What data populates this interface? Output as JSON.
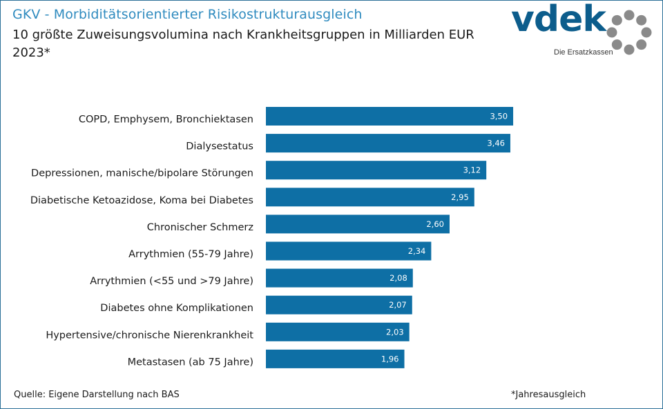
{
  "header": {
    "title": "GKV - Morbiditätsorientierter Risikostrukturausgleich",
    "subtitle_line1": "10 größte Zuweisungsvolumina nach Krankheitsgruppen in Milliarden EUR",
    "subtitle_line2": "2023*"
  },
  "logo": {
    "word": "vdek",
    "tagline": "Die Ersatzkassen",
    "colors": {
      "word": "#0c5d8c",
      "ring": "#8a8a8a"
    }
  },
  "footer": {
    "source": "Quelle: Eigene Darstellung nach BAS",
    "note": "*Jahresausgleich"
  },
  "chart_data": {
    "type": "bar",
    "orientation": "horizontal",
    "categories": [
      "COPD, Emphysem, Bronchiektasen",
      "Dialysestatus",
      "Depressionen, manische/bipolare Störungen",
      "Diabetische Ketoazidose, Koma bei Diabetes",
      "Chronischer Schmerz",
      "Arrythmien (55-79 Jahre)",
      "Arrythmien (<55 und >79 Jahre)",
      "Diabetes ohne Komplikationen",
      "Hypertensive/chronische Nierenkrankheit",
      "Metastasen (ab 75 Jahre)"
    ],
    "values": [
      3.5,
      3.46,
      3.12,
      2.95,
      2.6,
      2.34,
      2.08,
      2.07,
      2.03,
      1.96
    ],
    "data_labels": [
      "3,50",
      "3,46",
      "3,12",
      "2,95",
      "2,60",
      "2,34",
      "2,08",
      "2,07",
      "2,03",
      "1,96"
    ],
    "bar_color": "#0e6fa5",
    "xlim": [
      0,
      3.5
    ],
    "grid": false,
    "legend": "none"
  }
}
